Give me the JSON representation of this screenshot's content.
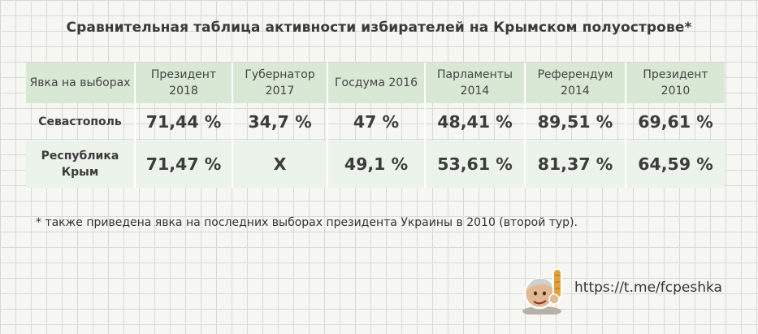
{
  "title": "Сравнительная таблица активности избирателей на Крымском полуострове*",
  "chart_data": {
    "type": "table",
    "corner_header": "Явка на выборах",
    "columns": [
      "Президент 2018",
      "Губернатор 2017",
      "Госдума 2016",
      "Парламенты 2014",
      "Референдум 2014",
      "Президент 2010"
    ],
    "rows": [
      {
        "label": "Севастополь",
        "values": [
          "71,44 %",
          "34,7 %",
          "47 %",
          "48,41 %",
          "89,51 %",
          "69,61 %"
        ]
      },
      {
        "label": "Республика Крым",
        "values": [
          "71,47 %",
          "X",
          "49,1 %",
          "53,61 %",
          "81,37 %",
          "64,59 %"
        ]
      }
    ],
    "colors": {
      "header_background": "#d8e8d4",
      "alt_row_background": "#ecf3ea"
    }
  },
  "footnote": "* также приведена явка на последних выборах президента Украины в 2010 (второй тур).",
  "link": "https://t.me/fcpeshka"
}
